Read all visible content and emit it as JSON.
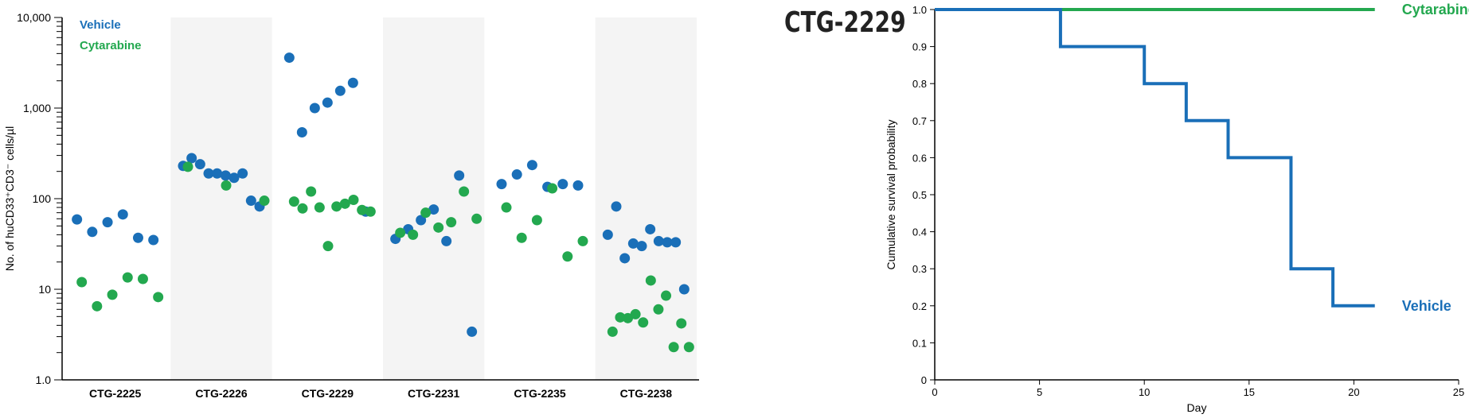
{
  "colors": {
    "vehicle": "#1a6fb8",
    "cytarabine": "#23a84f",
    "band": "#f4f4f4",
    "axis": "#000000",
    "grid": "#e2e2e2"
  },
  "panel_title": "CTG-2229",
  "chart_data": [
    {
      "type": "scatter",
      "ylabel": "No. of huCD33⁺CD3⁻ cells/µl",
      "xlabel": "",
      "yscale": "log",
      "ylim": [
        1.0,
        10000
      ],
      "yticks": [
        "1.0",
        "10",
        "100",
        "1,000",
        "10,000"
      ],
      "legend": {
        "placement": "top-left",
        "entries": [
          "Vehicle",
          "Cytarabine"
        ]
      },
      "categories": [
        "CTG-2225",
        "CTG-2226",
        "CTG-2229",
        "CTG-2231",
        "CTG-2235",
        "CTG-2238"
      ],
      "series": [
        {
          "name": "Vehicle",
          "groups": [
            [
              59,
              43,
              55,
              67,
              37,
              35
            ],
            [
              230,
              280,
              240,
              190,
              190,
              180,
              170,
              190,
              95,
              82
            ],
            [
              3600,
              540,
              1000,
              1150,
              1550,
              1900,
              72
            ],
            [
              36,
              46,
              58,
              76,
              34,
              180,
              3.4
            ],
            [
              145,
              185,
              235,
              135,
              145,
              140
            ],
            [
              40,
              82,
              22,
              32,
              30,
              46,
              34,
              33,
              33,
              10
            ]
          ]
        },
        {
          "name": "Cytarabine",
          "groups": [
            [
              12,
              6.5,
              8.7,
              13.5,
              13,
              8.2
            ],
            [
              225,
              140,
              95
            ],
            [
              93,
              78,
              120,
              80,
              30,
              82,
              88,
              97,
              75,
              72
            ],
            [
              42,
              40,
              70,
              48,
              55,
              120,
              60
            ],
            [
              80,
              37,
              58,
              130,
              23,
              34
            ],
            [
              3.4,
              4.9,
              4.8,
              5.3,
              4.3,
              12.5,
              6,
              8.5,
              2.3,
              4.2,
              2.3
            ]
          ]
        }
      ]
    },
    {
      "type": "line",
      "title": "CTG-2229",
      "xlabel": "Day",
      "ylabel": "Cumulative survival probability",
      "xlim": [
        0,
        25
      ],
      "ylim": [
        0,
        1.0
      ],
      "xticks": [
        "0",
        "5",
        "10",
        "15",
        "20",
        "25"
      ],
      "yticks": [
        "0",
        "0.1",
        "0.2",
        "0.3",
        "0.4",
        "0.5",
        "0.6",
        "0.7",
        "0.8",
        "0.9",
        "1.0"
      ],
      "series": [
        {
          "name": "Cytarabine",
          "step": true,
          "x": [
            0,
            21
          ],
          "y": [
            1.0,
            1.0
          ]
        },
        {
          "name": "Vehicle",
          "step": true,
          "x": [
            0,
            6,
            10,
            12,
            14,
            17,
            19,
            21
          ],
          "y": [
            1.0,
            0.9,
            0.8,
            0.7,
            0.6,
            0.3,
            0.2,
            0.2
          ]
        }
      ]
    }
  ]
}
